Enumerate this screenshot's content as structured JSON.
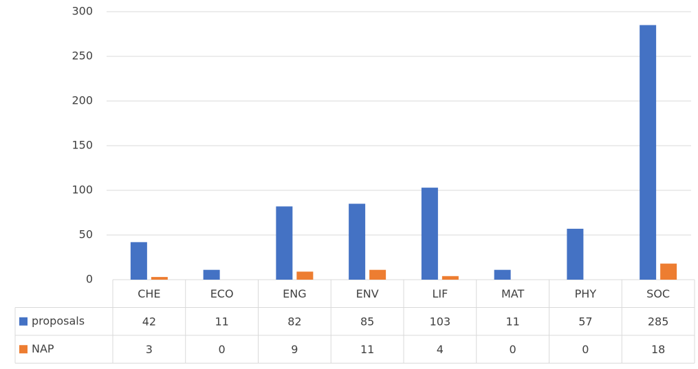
{
  "chart_data": {
    "type": "bar",
    "categories": [
      "CHE",
      "ECO",
      "ENG",
      "ENV",
      "LIF",
      "MAT",
      "PHY",
      "SOC"
    ],
    "series": [
      {
        "name": "proposals",
        "color": "#4472c4",
        "values": [
          42,
          11,
          82,
          85,
          103,
          11,
          57,
          285
        ]
      },
      {
        "name": "NAP",
        "color": "#ed7d31",
        "values": [
          3,
          0,
          9,
          11,
          4,
          0,
          0,
          18
        ]
      }
    ],
    "ylim": [
      0,
      300
    ],
    "yticks": [
      0,
      50,
      100,
      150,
      200,
      250,
      300
    ],
    "grid": true
  }
}
